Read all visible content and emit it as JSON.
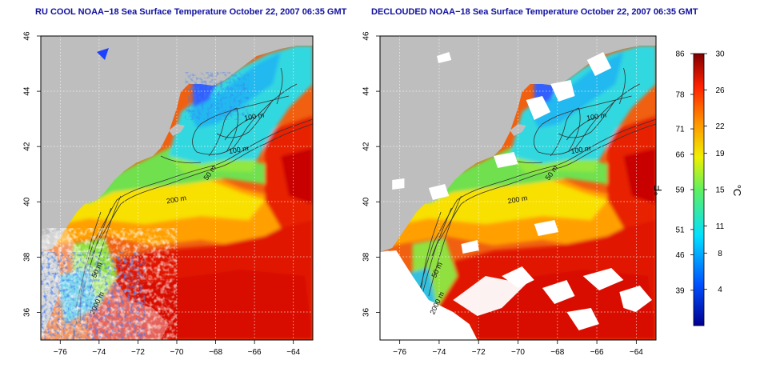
{
  "chart_data": [
    {
      "type": "heatmap",
      "title": "RU COOL NOAA−18 Sea Surface Temperature October 22, 2007 06:35 GMT",
      "x_ticks": [
        "−76",
        "−74",
        "−72",
        "−70",
        "−68",
        "−66",
        "−64"
      ],
      "y_ticks": [
        "36",
        "38",
        "40",
        "42",
        "44",
        "46"
      ],
      "xlim": [
        -77,
        -63
      ],
      "ylim": [
        35,
        46
      ],
      "grid": true,
      "contour_labels": [
        {
          "text": "100 m",
          "lon": -66.0,
          "lat": 43.0
        },
        {
          "text": "100 m",
          "lon": -66.8,
          "lat": 41.8
        },
        {
          "text": "50 m",
          "lon": -68.2,
          "lat": 41.0
        },
        {
          "text": "200 m",
          "lon": -70.0,
          "lat": 40.0
        },
        {
          "text": "50 m",
          "lon": -74.0,
          "lat": 37.5
        },
        {
          "text": "2000 m",
          "lon": -74.0,
          "lat": 36.3
        }
      ]
    },
    {
      "type": "heatmap",
      "title": "DECLOUDED NOAA−18 Sea Surface Temperature October 22, 2007 06:35 GMT",
      "x_ticks": [
        "−76",
        "−74",
        "−72",
        "−70",
        "−68",
        "−66",
        "−64"
      ],
      "y_ticks": [
        "36",
        "38",
        "40",
        "42",
        "44",
        "46"
      ],
      "xlim": [
        -77,
        -63
      ],
      "ylim": [
        35,
        46
      ],
      "grid": true,
      "contour_labels": [
        {
          "text": "100 m",
          "lon": -66.0,
          "lat": 43.0
        },
        {
          "text": "100 m",
          "lon": -66.8,
          "lat": 41.8
        },
        {
          "text": "50 m",
          "lon": -68.2,
          "lat": 41.0
        },
        {
          "text": "200 m",
          "lon": -70.0,
          "lat": 40.0
        },
        {
          "text": "50 m",
          "lon": -74.0,
          "lat": 37.5
        },
        {
          "text": "2000 m",
          "lon": -74.0,
          "lat": 36.3
        }
      ]
    }
  ],
  "colorbar": {
    "f_label": "°F",
    "c_label": "°C",
    "c_range": [
      0,
      30
    ],
    "f_ticks": [
      {
        "label": "86",
        "c": 30
      },
      {
        "label": "78",
        "c": 25.5
      },
      {
        "label": "71",
        "c": 21.7
      },
      {
        "label": "66",
        "c": 18.9
      },
      {
        "label": "59",
        "c": 15
      },
      {
        "label": "51",
        "c": 10.6
      },
      {
        "label": "46",
        "c": 7.8
      },
      {
        "label": "39",
        "c": 3.9
      }
    ],
    "c_ticks": [
      {
        "label": "30",
        "c": 30
      },
      {
        "label": "26",
        "c": 26
      },
      {
        "label": "22",
        "c": 22
      },
      {
        "label": "19",
        "c": 19
      },
      {
        "label": "15",
        "c": 15
      },
      {
        "label": "11",
        "c": 11
      },
      {
        "label": "8",
        "c": 8
      },
      {
        "label": "4",
        "c": 4
      }
    ]
  },
  "colors": {
    "land": "#bebebe",
    "cloud": "#ffffff",
    "title": "#1010a0",
    "contour": "#333333",
    "grid": "#ffffff"
  }
}
